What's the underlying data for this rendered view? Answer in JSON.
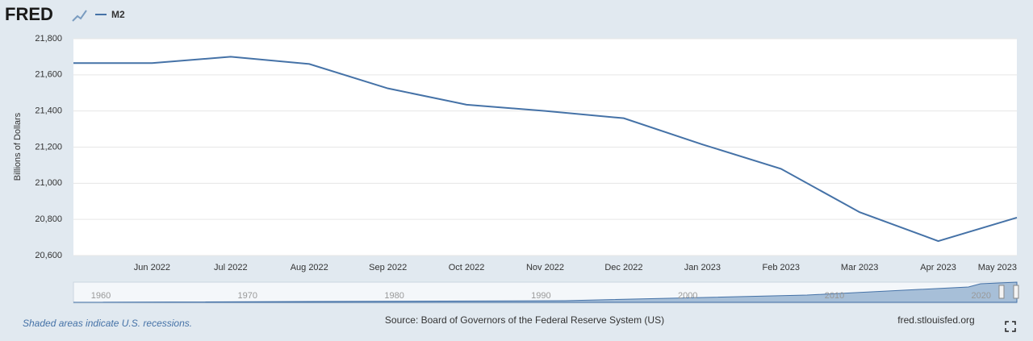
{
  "header": {
    "logo": "FRED"
  },
  "chart_data": {
    "type": "line",
    "y_label": "Billions of Dollars",
    "categories": [
      null,
      "Jun 2022",
      "Jul 2022",
      "Aug 2022",
      "Sep 2022",
      "Oct 2022",
      "Nov 2022",
      "Dec 2022",
      "Jan 2023",
      "Feb 2023",
      "Mar 2023",
      "Apr 2023",
      "May 2023"
    ],
    "series": [
      {
        "name": "M2",
        "color": "#4572a7",
        "values": [
          21665,
          21665,
          21700,
          21660,
          21525,
          21435,
          21400,
          21360,
          21215,
          21080,
          20840,
          20680,
          20810
        ]
      }
    ],
    "ylim": [
      20600,
      21800
    ],
    "yticks": [
      {
        "value": 20600,
        "label": "20,600"
      },
      {
        "value": 20800,
        "label": "20,800"
      },
      {
        "value": 21000,
        "label": "21,000"
      },
      {
        "value": 21200,
        "label": "21,200"
      },
      {
        "value": 21400,
        "label": "21,400"
      },
      {
        "value": 21600,
        "label": "21,600"
      },
      {
        "value": 21800,
        "label": "21,800"
      }
    ],
    "grid": true
  },
  "navigator": {
    "labels": [
      "1960",
      "1970",
      "1980",
      "1990",
      "2000",
      "2010",
      "2020"
    ]
  },
  "footer": {
    "note": "Shaded areas indicate U.S. recessions.",
    "source": "Source: Board of Governors of the Federal Reserve System (US)",
    "site": "fred.stlouisfed.org"
  }
}
